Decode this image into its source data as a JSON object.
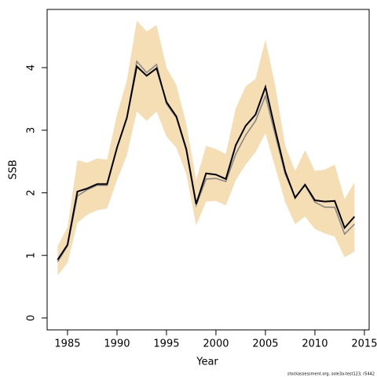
{
  "chart_data": {
    "type": "line",
    "x_label": "Year",
    "y_label": "SSB",
    "footnote": "stockassessment.org, sole3a-test123, r5442",
    "x": [
      1984,
      1985,
      1986,
      1987,
      1988,
      1989,
      1990,
      1991,
      1992,
      1993,
      1994,
      1995,
      1996,
      1997,
      1998,
      1999,
      2000,
      2001,
      2002,
      2003,
      2004,
      2005,
      2006,
      2007,
      2008,
      2009,
      2010,
      2011,
      2012,
      2013,
      2014
    ],
    "series": [
      {
        "color": "#888888",
        "values": [
          0.9,
          1.15,
          1.95,
          2.05,
          2.12,
          2.12,
          2.72,
          3.2,
          4.1,
          3.92,
          4.05,
          3.42,
          3.2,
          2.68,
          1.8,
          2.22,
          2.23,
          2.18,
          2.62,
          2.92,
          3.15,
          3.55,
          2.92,
          2.3,
          1.93,
          2.12,
          1.85,
          1.77,
          1.77,
          1.34,
          1.5
        ]
      },
      {
        "color": "#000000",
        "values": [
          0.93,
          1.17,
          2.02,
          2.07,
          2.14,
          2.14,
          2.72,
          3.2,
          4.02,
          3.87,
          3.99,
          3.45,
          3.22,
          2.7,
          1.82,
          2.31,
          2.29,
          2.22,
          2.76,
          3.07,
          3.25,
          3.69,
          3.0,
          2.34,
          1.92,
          2.13,
          1.88,
          1.86,
          1.87,
          1.44,
          1.62
        ]
      }
    ],
    "band": {
      "color": "#f5deb3",
      "upper": [
        1.15,
        1.45,
        2.52,
        2.48,
        2.55,
        2.53,
        3.25,
        3.8,
        4.75,
        4.58,
        4.68,
        4.0,
        3.72,
        3.1,
        2.2,
        2.75,
        2.7,
        2.62,
        3.35,
        3.7,
        3.82,
        4.45,
        3.7,
        2.75,
        2.35,
        2.68,
        2.35,
        2.37,
        2.45,
        1.9,
        2.17
      ],
      "lower": [
        0.68,
        0.88,
        1.52,
        1.65,
        1.72,
        1.75,
        2.2,
        2.6,
        3.3,
        3.15,
        3.3,
        2.9,
        2.72,
        2.3,
        1.48,
        1.86,
        1.87,
        1.8,
        2.2,
        2.45,
        2.65,
        2.95,
        2.4,
        1.85,
        1.5,
        1.62,
        1.42,
        1.35,
        1.3,
        0.97,
        1.06
      ]
    },
    "xlim": [
      1982.94,
      2015.48
    ],
    "ylim": [
      -0.19,
      4.93
    ],
    "xticks": [
      1985,
      1990,
      1995,
      2000,
      2005,
      2010,
      2015
    ],
    "yticks": [
      0,
      1,
      2,
      3,
      4
    ]
  }
}
